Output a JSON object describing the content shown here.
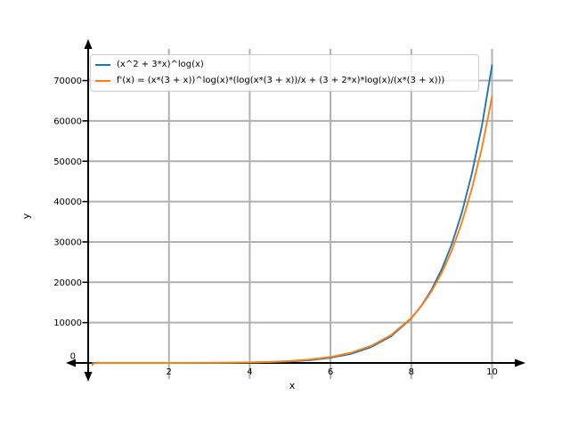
{
  "figure": {
    "background": "#ffffff",
    "axis_color": "#000000",
    "grid_color": "#b0b0b0",
    "legend_border_color": "#cccccc",
    "tick_label_color": "#000000"
  },
  "chart_data": {
    "type": "line",
    "title": "",
    "xlabel": "x",
    "ylabel": "y",
    "x_ticks": [
      2,
      4,
      6,
      8,
      10
    ],
    "y_ticks": [
      0,
      10000,
      20000,
      30000,
      40000,
      50000,
      60000,
      70000
    ],
    "origin_tick_label": "0",
    "xlim": [
      -0.4,
      10.55
    ],
    "ylim": [
      -4300,
      77800
    ],
    "grid": true,
    "legend_position": "upper-left",
    "x": [
      0.1,
      0.15,
      0.2,
      0.3,
      0.4,
      0.5,
      0.7,
      1,
      1.5,
      2,
      2.5,
      3,
      3.5,
      4,
      4.5,
      5,
      5.5,
      6,
      6.5,
      7,
      7.5,
      8,
      8.25,
      8.5,
      8.75,
      9,
      9.25,
      9.5,
      9.75,
      10
    ],
    "series": [
      {
        "name": "(x^2 + 3*x)^log(x)",
        "color": "#1f77b4",
        "values": [
          14.8,
          4.1,
          2.1,
          1.0,
          0.8,
          0.7,
          0.7,
          1.0,
          2.2,
          4.9,
          11.0,
          23.9,
          50.1,
          101,
          199,
          379,
          702,
          1271,
          2246,
          3893,
          6614,
          11044,
          14187,
          18145,
          23133,
          29383,
          37196,
          46897,
          58866,
          73830
        ]
      },
      {
        "name": "f'(x) = (x*(3 + x))^log(x)*(log(x*(3 + x))/x + (3 + 2*x)*log(x)/(x*(3 + x)))",
        "color": "#ff7f0e",
        "values": [
          -526,
          -76,
          -22,
          -4.5,
          -1.4,
          -0.3,
          0.5,
          1.4,
          3.5,
          8.1,
          17.5,
          36.2,
          72.4,
          140,
          262,
          478,
          850,
          1478,
          2514,
          4202,
          6897,
          11140,
          14081,
          17727,
          22254,
          27838,
          34723,
          43145,
          53380,
          66014
        ]
      }
    ]
  }
}
